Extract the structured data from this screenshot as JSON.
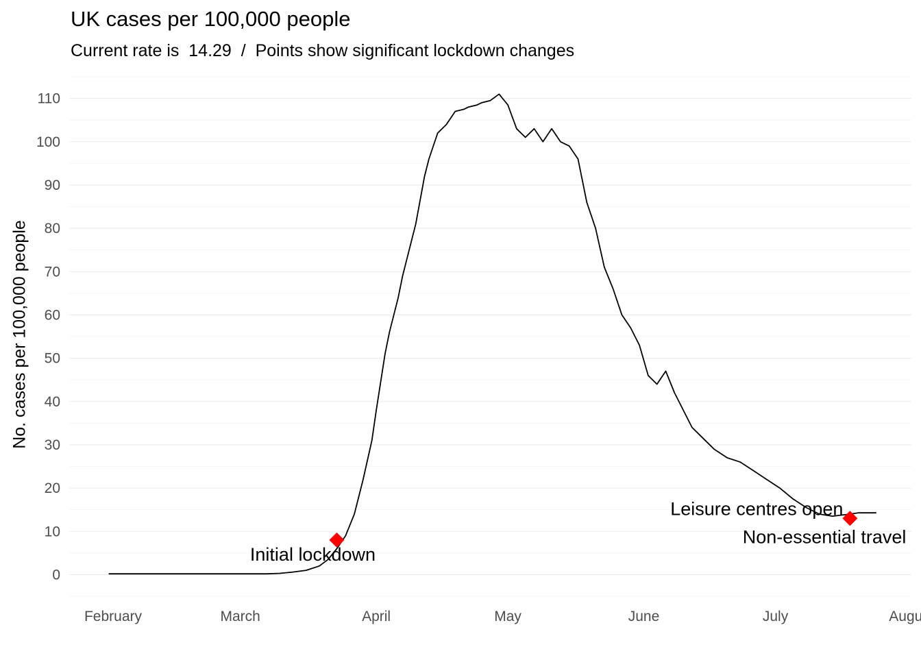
{
  "title": "UK cases per 100,000 people",
  "subtitle": "Current rate is  14.29  /  Points show significant lockdown changes",
  "chart_data": {
    "type": "line",
    "title": "UK cases per 100,000 people",
    "subtitle": "Current rate is  14.29  /  Points show significant lockdown changes",
    "xlabel": "",
    "ylabel": "No. cases per 100,000 people",
    "ylim": [
      -5,
      115
    ],
    "yticks": [
      0,
      10,
      20,
      30,
      40,
      50,
      60,
      70,
      80,
      90,
      100,
      110
    ],
    "xticks": [
      "February",
      "March",
      "April",
      "May",
      "June",
      "July",
      "August"
    ],
    "xtick_dates": [
      "2020-02-01",
      "2020-03-01",
      "2020-04-01",
      "2020-05-01",
      "2020-06-01",
      "2020-07-01",
      "2020-08-01"
    ],
    "xlim": [
      "2020-01-22",
      "2020-08-01"
    ],
    "grid": "horizontal",
    "line_color": "#000000",
    "marker_color": "#ff0000",
    "series": [
      {
        "x": [
          "2020-01-31",
          "2020-02-07",
          "2020-02-14",
          "2020-02-21",
          "2020-02-28",
          "2020-03-07",
          "2020-03-10",
          "2020-03-13",
          "2020-03-16",
          "2020-03-19",
          "2020-03-21",
          "2020-03-23",
          "2020-03-25",
          "2020-03-27",
          "2020-03-29",
          "2020-03-31",
          "2020-04-01",
          "2020-04-03",
          "2020-04-04",
          "2020-04-06",
          "2020-04-07",
          "2020-04-09",
          "2020-04-10",
          "2020-04-12",
          "2020-04-13",
          "2020-04-15",
          "2020-04-17",
          "2020-04-19",
          "2020-04-21",
          "2020-04-22",
          "2020-04-24",
          "2020-04-25",
          "2020-04-27",
          "2020-04-29",
          "2020-05-01",
          "2020-05-03",
          "2020-05-05",
          "2020-05-07",
          "2020-05-09",
          "2020-05-11",
          "2020-05-13",
          "2020-05-15",
          "2020-05-17",
          "2020-05-19",
          "2020-05-21",
          "2020-05-23",
          "2020-05-25",
          "2020-05-27",
          "2020-05-29",
          "2020-05-31",
          "2020-06-02",
          "2020-06-04",
          "2020-06-06",
          "2020-06-08",
          "2020-06-10",
          "2020-06-12",
          "2020-06-14",
          "2020-06-17",
          "2020-06-20",
          "2020-06-23",
          "2020-06-26",
          "2020-06-29",
          "2020-07-02",
          "2020-07-05",
          "2020-07-08",
          "2020-07-11",
          "2020-07-14",
          "2020-07-18",
          "2020-07-20",
          "2020-07-22",
          "2020-07-24"
        ],
        "y": [
          0.2,
          0.2,
          0.2,
          0.2,
          0.2,
          0.2,
          0.3,
          0.6,
          1,
          2,
          3.5,
          6,
          9,
          14,
          22,
          31,
          38,
          51,
          56,
          64,
          69,
          77,
          81,
          92,
          96,
          102,
          104,
          107,
          107.5,
          108,
          108.5,
          109,
          109.5,
          111,
          108.5,
          103,
          101,
          103,
          100,
          103,
          100,
          99,
          96,
          86,
          80,
          71,
          66,
          60,
          57,
          53,
          46,
          44,
          47,
          42,
          38,
          34,
          32,
          29,
          27,
          26,
          24,
          22,
          20,
          17.5,
          15.5,
          14,
          13.5,
          14,
          14.3,
          14.29,
          14.29
        ]
      }
    ],
    "annotations": [
      {
        "label": "Initial lockdown",
        "x": "2020-03-23",
        "y": 8
      },
      {
        "label": "Leisure centres open",
        "x": "2020-07-18",
        "y": 13
      },
      {
        "label": "Non-essential travel",
        "x": "2020-07-18",
        "y": 13
      }
    ]
  }
}
